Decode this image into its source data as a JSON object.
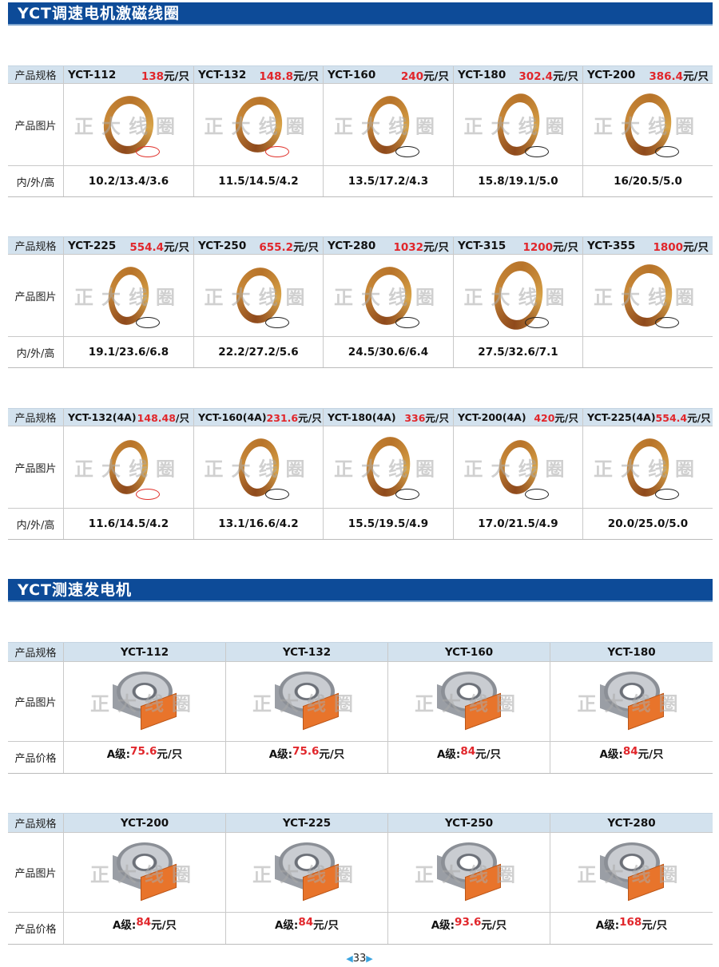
{
  "sections": [
    {
      "title": "YCT调速电机激磁线圈"
    },
    {
      "title": "YCT测速发电机"
    }
  ],
  "labels": {
    "spec": "产品规格",
    "image": "产品图片",
    "dims": "内/外/高",
    "price": "产品价格"
  },
  "watermark": "正大线圈",
  "colors": {
    "header_bar": "#0d4b98",
    "header_row": "#d3e2ee",
    "price": "#e1262b"
  },
  "coil_tables": [
    {
      "items": [
        {
          "model": "YCT-112",
          "price": "138",
          "unit": "元/只",
          "dims": "10.2/13.4/3.6",
          "lead": "red"
        },
        {
          "model": "YCT-132",
          "price": "148.8",
          "unit": "元/只",
          "dims": "11.5/14.5/4.2",
          "lead": "red"
        },
        {
          "model": "YCT-160",
          "price": "240",
          "unit": "元/只",
          "dims": "13.5/17.2/4.3",
          "lead": "black"
        },
        {
          "model": "YCT-180",
          "price": "302.4",
          "unit": "元/只",
          "dims": "15.8/19.1/5.0",
          "lead": "black"
        },
        {
          "model": "YCT-200",
          "price": "386.4",
          "unit": "元/只",
          "dims": "16/20.5/5.0",
          "lead": "black"
        }
      ]
    },
    {
      "items": [
        {
          "model": "YCT-225",
          "price": "554.4",
          "unit": "元/只",
          "dims": "19.1/23.6/6.8",
          "lead": "black"
        },
        {
          "model": "YCT-250",
          "price": "655.2",
          "unit": "元/只",
          "dims": "22.2/27.2/5.6",
          "lead": "black"
        },
        {
          "model": "YCT-280",
          "price": "1032",
          "unit": "元/只",
          "dims": "24.5/30.6/6.4",
          "lead": "black"
        },
        {
          "model": "YCT-315",
          "price": "1200",
          "unit": "元/只",
          "dims": "27.5/32.6/7.1",
          "lead": "black"
        },
        {
          "model": "YCT-355",
          "price": "1800",
          "unit": "元/只",
          "dims": "",
          "lead": "black"
        }
      ]
    },
    {
      "items": [
        {
          "model": "YCT-132(4A)",
          "price": "148.48",
          "unit": "/只",
          "dims": "11.6/14.5/4.2",
          "lead": "red"
        },
        {
          "model": "YCT-160(4A)",
          "price": "231.6",
          "unit": "元/只",
          "dims": "13.1/16.6/4.2",
          "lead": "black"
        },
        {
          "model": "YCT-180(4A)",
          "price": "336",
          "unit": "元/只",
          "dims": "15.5/19.5/4.9",
          "lead": "black"
        },
        {
          "model": "YCT-200(4A)",
          "price": "420",
          "unit": "元/只",
          "dims": "17.0/21.5/4.9",
          "lead": "black"
        },
        {
          "model": "YCT-225(4A)",
          "price": "554.4",
          "unit": "元/只",
          "dims": "20.0/25.0/5.0",
          "lead": "black"
        }
      ]
    }
  ],
  "gen_tables": [
    {
      "items": [
        {
          "model": "YCT-112",
          "grade": "A级:",
          "price": "75.6",
          "unit": "元/只"
        },
        {
          "model": "YCT-132",
          "grade": "A级:",
          "price": "75.6",
          "unit": "元/只"
        },
        {
          "model": "YCT-160",
          "grade": "A级:",
          "price": "84",
          "unit": "元/只"
        },
        {
          "model": "YCT-180",
          "grade": "A级:",
          "price": "84",
          "unit": "元/只"
        }
      ]
    },
    {
      "items": [
        {
          "model": "YCT-200",
          "grade": "A级:",
          "price": "84",
          "unit": "元/只"
        },
        {
          "model": "YCT-225",
          "grade": "A级:",
          "price": "84",
          "unit": "元/只"
        },
        {
          "model": "YCT-250",
          "grade": "A级:",
          "price": "93.6",
          "unit": "元/只"
        },
        {
          "model": "YCT-280",
          "grade": "A级:",
          "price": "168",
          "unit": "元/只"
        }
      ]
    }
  ],
  "page_number": "33"
}
